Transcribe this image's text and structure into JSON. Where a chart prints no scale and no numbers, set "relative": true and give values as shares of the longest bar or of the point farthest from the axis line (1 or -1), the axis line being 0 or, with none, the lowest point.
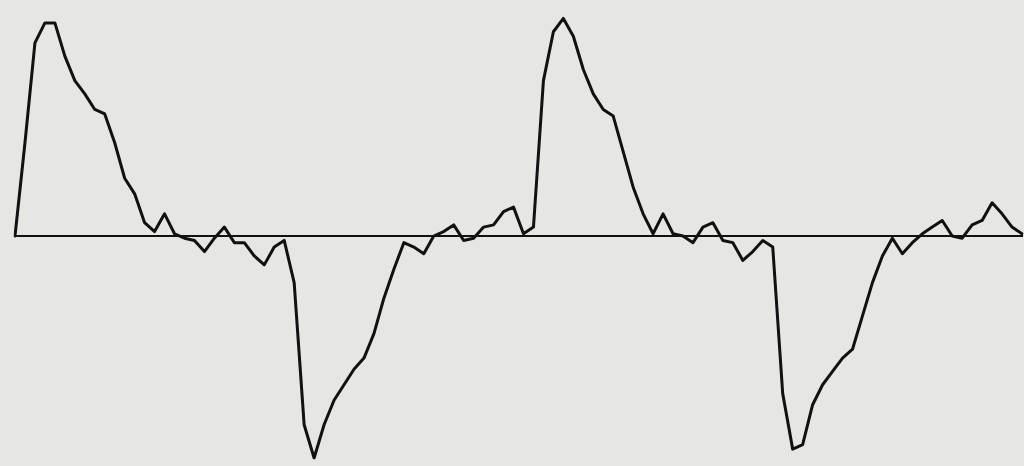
{
  "chart_data": {
    "type": "line",
    "relative": true,
    "categories": [
      null,
      null,
      null,
      null,
      null,
      null,
      null,
      null,
      null,
      null,
      null,
      null,
      null,
      null,
      null,
      null,
      null,
      null,
      null,
      null,
      null,
      null,
      null,
      null,
      null,
      null,
      null,
      null,
      null,
      null,
      null,
      null,
      null,
      null,
      null,
      null,
      null,
      null,
      null,
      null,
      null,
      null,
      null,
      null,
      null,
      null,
      null,
      null,
      null,
      null,
      null,
      null,
      null,
      null,
      null,
      null,
      null,
      null,
      null,
      null,
      null,
      null,
      null,
      null,
      null,
      null,
      null,
      null,
      null,
      null,
      null,
      null,
      null,
      null,
      null,
      null,
      null,
      null,
      null,
      null,
      null,
      null,
      null,
      null,
      null,
      null,
      null,
      null,
      null,
      null,
      null,
      null,
      null,
      null,
      null,
      null,
      null,
      null,
      null,
      null,
      null,
      null
    ],
    "series": [
      {
        "color": "#111111",
        "values": [
          0,
          0.42,
          0.87,
          0.96,
          0.96,
          0.81,
          0.7,
          0.64,
          0.57,
          0.55,
          0.42,
          0.26,
          0.19,
          0.06,
          0.02,
          0.1,
          0.01,
          -0.01,
          -0.02,
          -0.07,
          -0.01,
          0.04,
          -0.03,
          -0.03,
          -0.09,
          -0.13,
          -0.05,
          -0.02,
          -0.21,
          -0.85,
          -1,
          -0.85,
          -0.74,
          -0.67,
          -0.6,
          -0.55,
          -0.44,
          -0.28,
          -0.15,
          -0.03,
          -0.05,
          -0.08,
          0,
          0.02,
          0.05,
          -0.02,
          -0.01,
          0.04,
          0.05,
          0.11,
          0.13,
          0.01,
          0.04,
          0.7,
          0.92,
          0.98,
          0.9,
          0.75,
          0.64,
          0.57,
          0.54,
          0.38,
          0.22,
          0.1,
          0.01,
          0.1,
          0.01,
          0,
          -0.03,
          0.04,
          0.06,
          -0.02,
          -0.03,
          -0.11,
          -0.07,
          -0.02,
          -0.05,
          -0.71,
          -0.96,
          -0.94,
          -0.76,
          -0.67,
          -0.61,
          -0.55,
          -0.51,
          -0.36,
          -0.21,
          -0.09,
          -0.01,
          -0.08,
          -0.03,
          0.01,
          0.04,
          0.07,
          0,
          -0.01,
          0.05,
          0.07,
          0.15,
          0.1,
          0.04,
          0.01
        ]
      }
    ],
    "marker": "none",
    "line_style": "solid",
    "grid": false,
    "legend": false
  }
}
